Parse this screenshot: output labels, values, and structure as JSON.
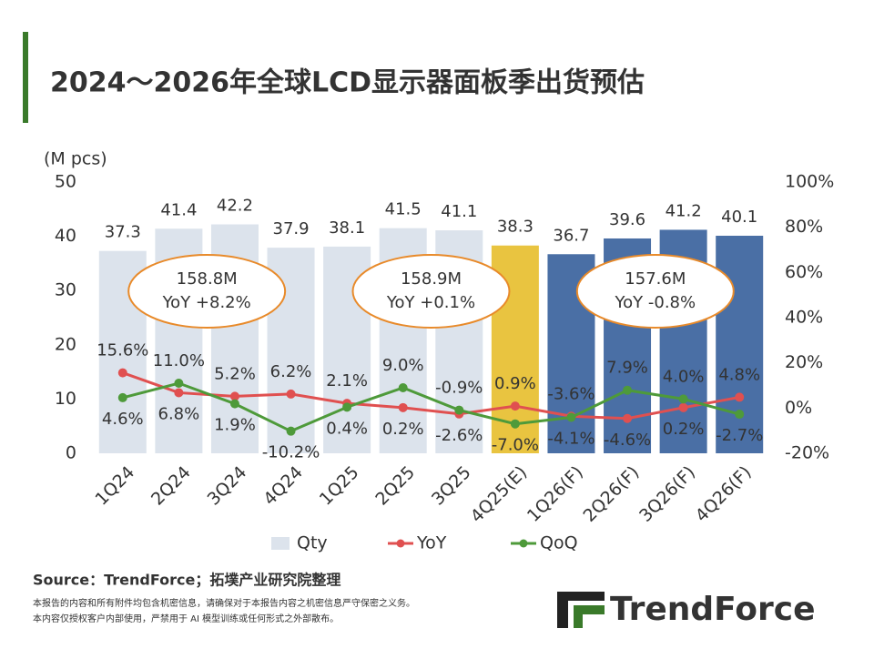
{
  "chart_data": {
    "type": "bar-line",
    "title": "2024～2026年全球LCD显示器面板季出货预估",
    "y_label": "(M pcs)",
    "categories": [
      "1Q24",
      "2Q24",
      "3Q24",
      "4Q24",
      "1Q25",
      "2Q25",
      "3Q25",
      "4Q25(E)",
      "1Q26(F)",
      "2Q26(F)",
      "3Q26(F)",
      "4Q26(F)"
    ],
    "series": [
      {
        "name": "Qty",
        "type": "bar",
        "color": "#dce3ec",
        "colors": [
          "#dce3ec",
          "#dce3ec",
          "#dce3ec",
          "#dce3ec",
          "#dce3ec",
          "#dce3ec",
          "#dce3ec",
          "#e9c440",
          "#4a6fa5",
          "#4a6fa5",
          "#4a6fa5",
          "#4a6fa5"
        ],
        "values": [
          37.3,
          41.4,
          42.2,
          37.9,
          38.1,
          41.5,
          41.1,
          38.3,
          36.7,
          39.6,
          41.2,
          40.1
        ]
      },
      {
        "name": "YoY",
        "type": "line",
        "axis": "y2",
        "color": "#e05050",
        "values": [
          15.6,
          6.8,
          5.2,
          6.2,
          2.1,
          0.2,
          -2.6,
          0.9,
          -3.6,
          -4.6,
          0.2,
          4.8
        ],
        "value_labels": [
          "15.6%",
          "6.8%",
          "5.2%",
          "6.2%",
          "2.1%",
          "0.2%",
          "-2.6%",
          "0.9%",
          "-3.6%",
          "-4.6%",
          "0.2%",
          "4.8%"
        ]
      },
      {
        "name": "QoQ",
        "type": "line",
        "axis": "y2",
        "color": "#4e9a3a",
        "values": [
          4.6,
          11.0,
          1.9,
          -10.2,
          0.4,
          9.0,
          -0.9,
          -7.0,
          -4.1,
          7.9,
          4.0,
          -2.7
        ],
        "value_labels": [
          "4.6%",
          "11.0%",
          "1.9%",
          "-10.2%",
          "0.4%",
          "9.0%",
          "-0.9%",
          "-7.0%",
          "-4.1%",
          "7.9%",
          "4.0%",
          "-2.7%"
        ]
      }
    ],
    "ylim": [
      0,
      50
    ],
    "yticks": [
      0,
      10,
      20,
      30,
      40,
      50
    ],
    "y2lim": [
      -20,
      100
    ],
    "y2ticks": [
      {
        "value": -20,
        "label": "-20%"
      },
      {
        "value": 0,
        "label": "0%"
      },
      {
        "value": 20,
        "label": "20%"
      },
      {
        "value": 40,
        "label": "40%"
      },
      {
        "value": 60,
        "label": "60%"
      },
      {
        "value": 80,
        "label": "80%"
      },
      {
        "value": 100,
        "label": "100%"
      }
    ],
    "legend": "bottom",
    "annotations": [
      {
        "lines": [
          "158.8M",
          "YoY +8.2%"
        ]
      },
      {
        "lines": [
          "158.9M",
          "YoY +0.1%"
        ]
      },
      {
        "lines": [
          "157.6M",
          "YoY -0.8%"
        ]
      }
    ],
    "source": "Source：TrendForce；拓墣产业研究院整理",
    "notes": [
      "本报告的内容和所有附件均包含机密信息，请确保对于本报告内容之机密信息严守保密之义务。",
      "本内容仅授权客户内部使用，严禁用于 AI 模型训练或任何形式之外部散布。"
    ],
    "logo": "TrendForce"
  }
}
